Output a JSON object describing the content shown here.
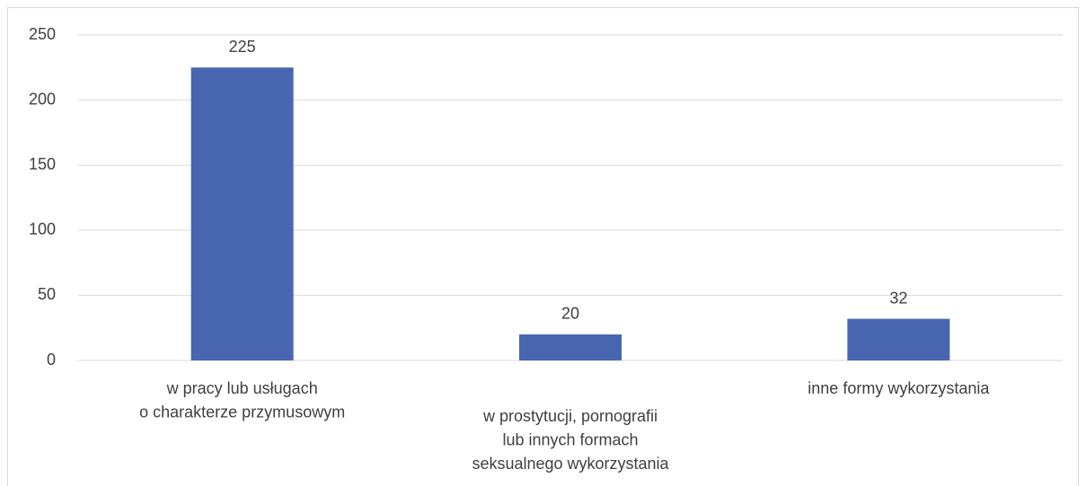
{
  "chart_data": {
    "type": "bar",
    "categories": [
      [
        "w pracy lub usługach",
        "o charakterze przymusowym"
      ],
      [
        "w prostytucji, pornografii",
        "lub innych formach",
        "seksualnego wykorzystania"
      ],
      [
        "inne formy wykorzystania"
      ]
    ],
    "values": [
      225,
      20,
      32
    ],
    "color": "#4866b0",
    "ylim": [
      0,
      250
    ],
    "yticks": [
      0,
      50,
      100,
      150,
      200,
      250
    ],
    "grid": true
  }
}
